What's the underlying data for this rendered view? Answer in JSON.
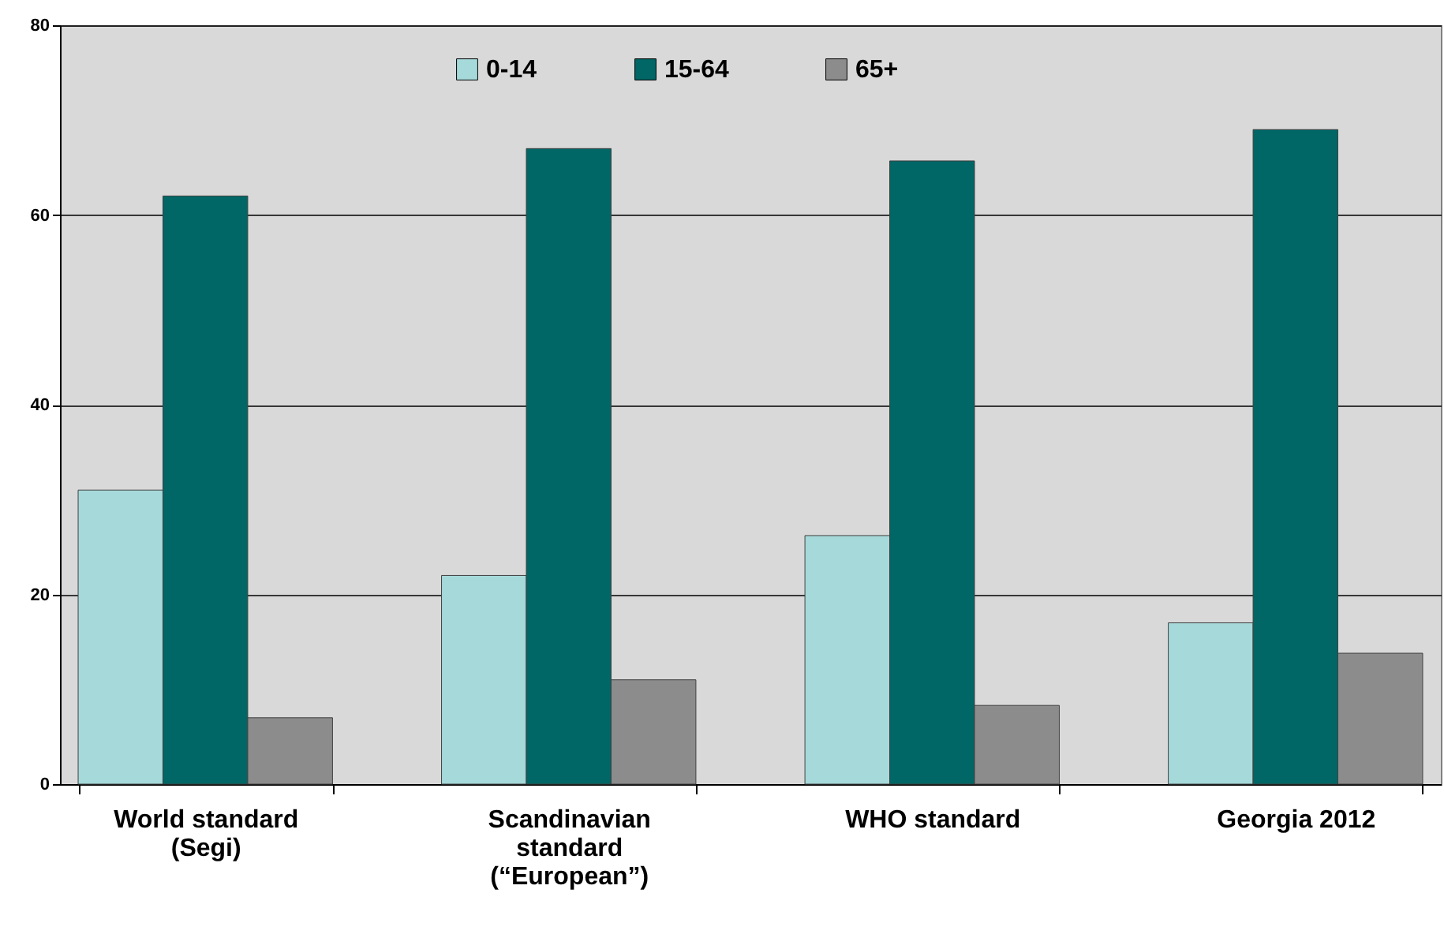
{
  "chart_data": {
    "type": "bar",
    "categories": [
      "World standard\n(Segi)",
      "Scandinavian\nstandard\n(“European”)",
      "WHO standard",
      "Georgia 2012"
    ],
    "series": [
      {
        "name": "0-14",
        "color": "#a6d9d9",
        "values": [
          31,
          22,
          26.2,
          17
        ]
      },
      {
        "name": "15-64",
        "color": "#006666",
        "values": [
          62,
          67,
          65.7,
          69
        ]
      },
      {
        "name": "65+",
        "color": "#8c8c8c",
        "values": [
          7,
          11,
          8.3,
          13.8
        ]
      }
    ],
    "ylim": [
      0,
      80
    ],
    "yticks": [
      0,
      20,
      40,
      60,
      80
    ],
    "grid": "y",
    "legend": "top"
  }
}
